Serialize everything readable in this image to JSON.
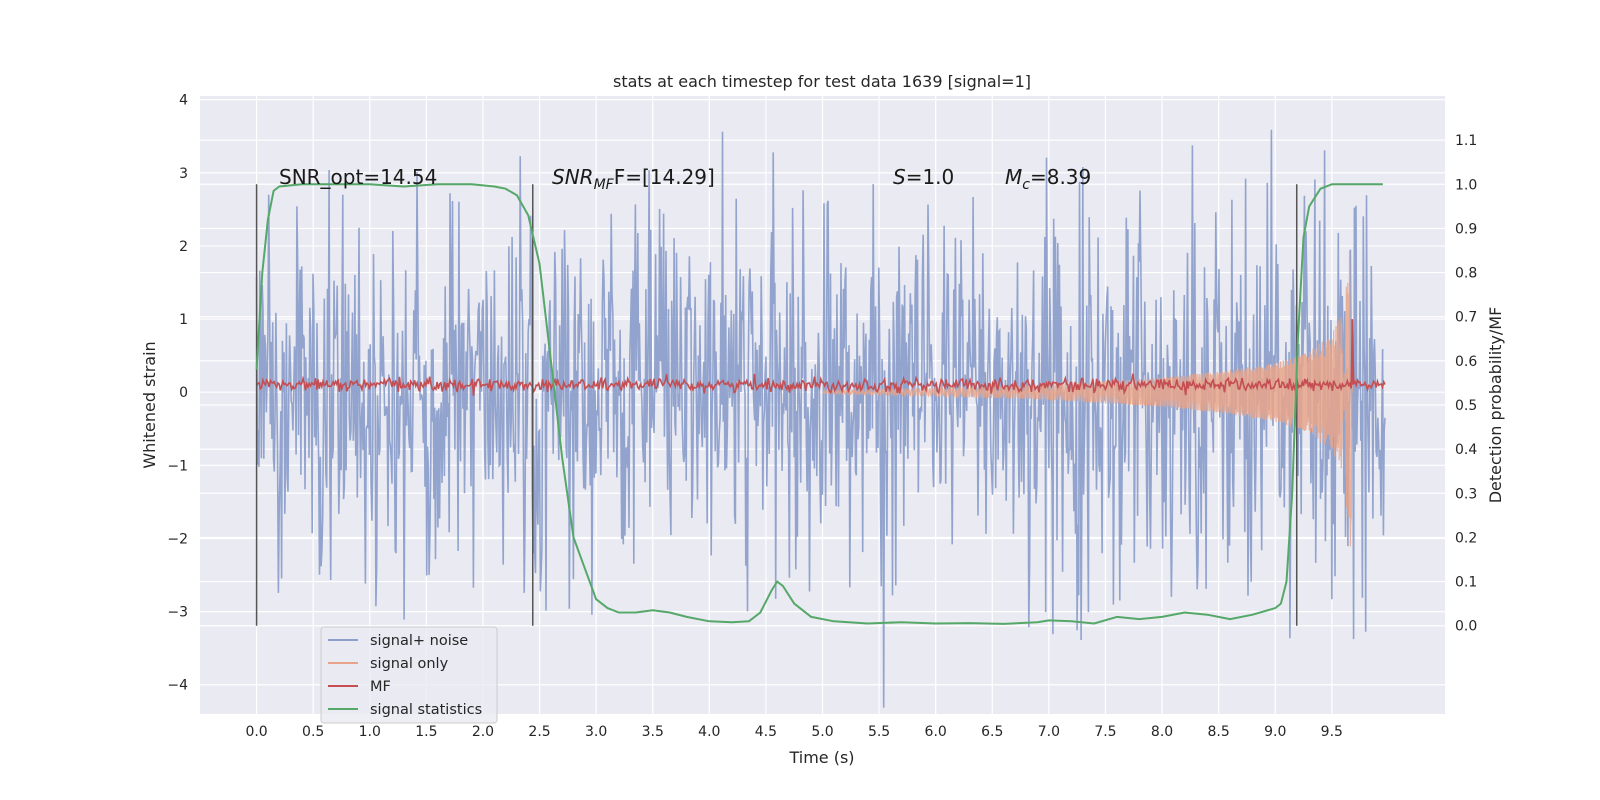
{
  "chart_data": {
    "type": "line",
    "title": "stats at each timestep for test data 1639 [signal=1]",
    "xlabel": "Time (s)",
    "ylabel": "Whitened strain",
    "y2label": "Detection probability/MF",
    "xlim": [
      -0.5,
      10.5
    ],
    "ylim": [
      -4.4,
      4.05
    ],
    "y2lim": [
      -0.2,
      1.2
    ],
    "xticks": [
      "0.0",
      "0.5",
      "1.0",
      "1.5",
      "2.0",
      "2.5",
      "3.0",
      "3.5",
      "4.0",
      "4.5",
      "5.0",
      "5.5",
      "6.0",
      "6.5",
      "7.0",
      "7.5",
      "8.0",
      "8.5",
      "9.0",
      "9.5"
    ],
    "yticks": [
      "4",
      "3",
      "2",
      "1",
      "0",
      "−1",
      "−2",
      "−3",
      "−4"
    ],
    "y2ticks": [
      "1.1",
      "1.0",
      "0.9",
      "0.8",
      "0.7",
      "0.6",
      "0.5",
      "0.4",
      "0.3",
      "0.2",
      "0.1",
      "0.0"
    ],
    "grid": true,
    "legend_position": "lower-left",
    "annotations": {
      "snr_opt": "SNR_opt=14.54",
      "snr_mf_main": "SNR",
      "snr_mf_sub": "MF",
      "snr_mf_rest": "F=[14.29]",
      "s_var": "S",
      "s_rest": "=1.0",
      "mc_var": "M",
      "mc_sub": "c",
      "mc_rest": "=8.39"
    },
    "vertical_markers_x": [
      0.0,
      2.44,
      9.19
    ],
    "series": [
      {
        "name": "signal+ noise",
        "color": "#8da0cb",
        "envelope_x": [
          0.0,
          1.0,
          2.0,
          3.0,
          4.0,
          5.0,
          6.0,
          7.0,
          8.0,
          9.0,
          9.5,
          9.95
        ],
        "envelope_y": [
          2.7,
          2.6,
          2.6,
          2.5,
          2.6,
          2.5,
          2.6,
          2.7,
          2.8,
          3.0,
          3.2,
          2.3
        ]
      },
      {
        "name": "signal only",
        "color": "#e8a48a",
        "x": [
          5.0,
          6.0,
          7.0,
          8.0,
          8.5,
          9.0,
          9.3,
          9.5,
          9.6,
          9.67,
          9.68
        ],
        "amplitude": [
          0.02,
          0.05,
          0.1,
          0.2,
          0.28,
          0.4,
          0.55,
          0.8,
          1.1,
          2.2,
          0.0
        ]
      },
      {
        "name": "MF",
        "color": "#c44e52",
        "baseline": 0.1,
        "spike_x": 9.68,
        "spike_y": 1.0
      },
      {
        "name": "signal statistics",
        "color": "#55a868",
        "x": [
          0.0,
          0.05,
          0.1,
          0.15,
          0.2,
          0.4,
          0.7,
          1.0,
          1.3,
          1.6,
          1.9,
          2.1,
          2.2,
          2.3,
          2.4,
          2.5,
          2.6,
          2.7,
          2.8,
          2.9,
          3.0,
          3.1,
          3.2,
          3.35,
          3.5,
          3.65,
          3.8,
          4.0,
          4.2,
          4.35,
          4.45,
          4.55,
          4.6,
          4.65,
          4.75,
          4.9,
          5.1,
          5.4,
          5.7,
          6.0,
          6.3,
          6.6,
          6.9,
          7.0,
          7.2,
          7.4,
          7.6,
          7.8,
          8.0,
          8.2,
          8.4,
          8.6,
          8.8,
          9.0,
          9.05,
          9.1,
          9.15,
          9.2,
          9.25,
          9.3,
          9.4,
          9.5,
          9.6,
          9.7,
          9.95
        ],
        "y": [
          0.58,
          0.8,
          0.92,
          0.985,
          0.995,
          1.0,
          1.0,
          1.0,
          0.995,
          1.0,
          1.0,
          0.995,
          0.99,
          0.975,
          0.93,
          0.82,
          0.6,
          0.38,
          0.2,
          0.13,
          0.06,
          0.04,
          0.03,
          0.03,
          0.035,
          0.03,
          0.02,
          0.01,
          0.008,
          0.01,
          0.03,
          0.08,
          0.1,
          0.09,
          0.05,
          0.02,
          0.01,
          0.005,
          0.008,
          0.005,
          0.006,
          0.004,
          0.008,
          0.012,
          0.01,
          0.005,
          0.02,
          0.015,
          0.02,
          0.03,
          0.025,
          0.015,
          0.025,
          0.04,
          0.05,
          0.1,
          0.3,
          0.65,
          0.88,
          0.95,
          0.99,
          1.0,
          1.0,
          1.0,
          1.0
        ]
      }
    ]
  }
}
